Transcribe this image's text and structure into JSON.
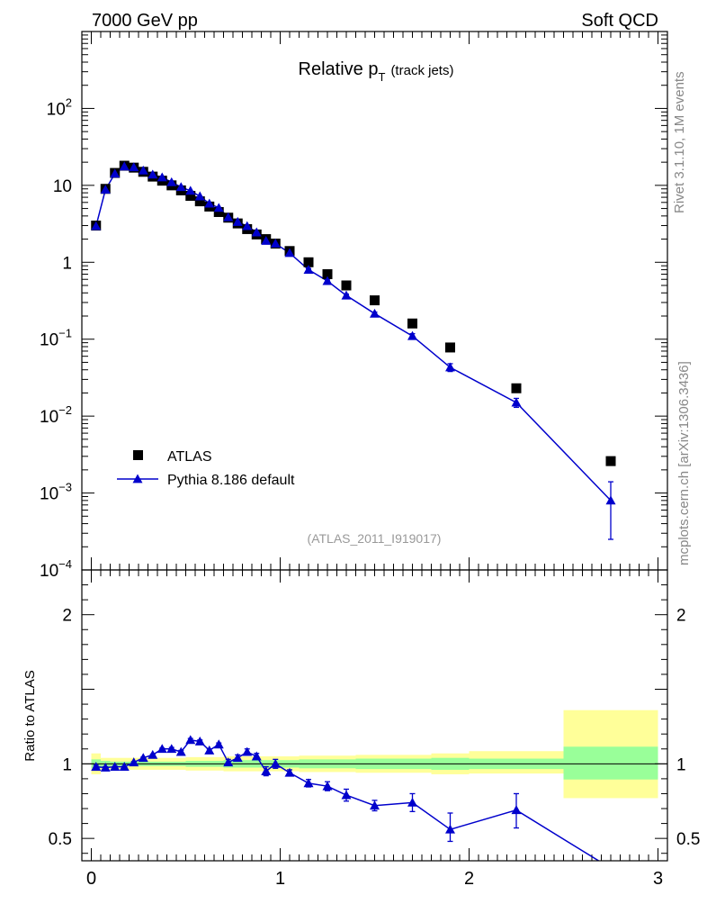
{
  "header": {
    "energy_label": "7000 GeV pp",
    "category_label": "Soft QCD"
  },
  "side": {
    "rivet_label": "Rivet 3.1.10,  1M events",
    "source_label": "mcplots.cern.ch [arXiv:1306.3436]"
  },
  "colors": {
    "atlas": "#000000",
    "pythia": "#0000cc",
    "band_inner": "#99ff99",
    "band_outer": "#ffff99"
  },
  "chart_data": [
    {
      "type": "scatter",
      "title_main": "Relative p",
      "title_sub": "T",
      "title_note": "(track jets)",
      "analysis_label": "(ATLAS_2011_I919017)",
      "yscale": "log",
      "xlim": [
        -0.05,
        3.05
      ],
      "ylim": [
        0.0001,
        1000
      ],
      "y_tick_labels": [
        {
          "value": 0.0001,
          "base": "10",
          "exp": "−4"
        },
        {
          "value": 0.001,
          "base": "10",
          "exp": "−3"
        },
        {
          "value": 0.01,
          "base": "10",
          "exp": "−2"
        },
        {
          "value": 0.1,
          "base": "10",
          "exp": "−1"
        },
        {
          "value": 1,
          "base": "1",
          "exp": ""
        },
        {
          "value": 10,
          "base": "10",
          "exp": ""
        },
        {
          "value": 100,
          "base": "10",
          "exp": "2"
        }
      ],
      "legend_position": "lower-left",
      "series": [
        {
          "name": "ATLAS",
          "marker": "square",
          "points": [
            {
              "x": 0.025,
              "y": 3.0
            },
            {
              "x": 0.075,
              "y": 9.0
            },
            {
              "x": 0.125,
              "y": 14.5
            },
            {
              "x": 0.175,
              "y": 18.0
            },
            {
              "x": 0.225,
              "y": 17.0
            },
            {
              "x": 0.275,
              "y": 15.0
            },
            {
              "x": 0.325,
              "y": 13.0
            },
            {
              "x": 0.375,
              "y": 11.5
            },
            {
              "x": 0.425,
              "y": 10.0
            },
            {
              "x": 0.475,
              "y": 8.6
            },
            {
              "x": 0.525,
              "y": 7.3
            },
            {
              "x": 0.575,
              "y": 6.2
            },
            {
              "x": 0.625,
              "y": 5.3
            },
            {
              "x": 0.675,
              "y": 4.5
            },
            {
              "x": 0.725,
              "y": 3.8
            },
            {
              "x": 0.775,
              "y": 3.2
            },
            {
              "x": 0.825,
              "y": 2.7
            },
            {
              "x": 0.875,
              "y": 2.3
            },
            {
              "x": 0.925,
              "y": 2.0
            },
            {
              "x": 0.975,
              "y": 1.75
            },
            {
              "x": 1.05,
              "y": 1.4
            },
            {
              "x": 1.15,
              "y": 1.0
            },
            {
              "x": 1.25,
              "y": 0.7
            },
            {
              "x": 1.35,
              "y": 0.5
            },
            {
              "x": 1.5,
              "y": 0.32
            },
            {
              "x": 1.7,
              "y": 0.16
            },
            {
              "x": 1.9,
              "y": 0.078
            },
            {
              "x": 2.25,
              "y": 0.023
            },
            {
              "x": 2.75,
              "y": 0.0026
            }
          ]
        },
        {
          "name": "Pythia 8.186 default",
          "marker": "triangle",
          "points": [
            {
              "x": 0.025,
              "y": 2.95,
              "lo": 2.95,
              "hi": 2.95
            },
            {
              "x": 0.075,
              "y": 8.8,
              "lo": 8.8,
              "hi": 8.8
            },
            {
              "x": 0.125,
              "y": 14.2,
              "lo": 14.2,
              "hi": 14.2
            },
            {
              "x": 0.175,
              "y": 17.6,
              "lo": 17.6,
              "hi": 17.6
            },
            {
              "x": 0.225,
              "y": 17.2,
              "lo": 17.2,
              "hi": 17.2
            },
            {
              "x": 0.275,
              "y": 15.6,
              "lo": 15.6,
              "hi": 15.6
            },
            {
              "x": 0.325,
              "y": 13.8,
              "lo": 13.8,
              "hi": 13.8
            },
            {
              "x": 0.375,
              "y": 12.7,
              "lo": 12.7,
              "hi": 12.7
            },
            {
              "x": 0.425,
              "y": 11.0,
              "lo": 11.0,
              "hi": 11.0
            },
            {
              "x": 0.475,
              "y": 9.5,
              "lo": 9.5,
              "hi": 9.5
            },
            {
              "x": 0.525,
              "y": 8.5,
              "lo": 8.5,
              "hi": 8.5
            },
            {
              "x": 0.575,
              "y": 7.2,
              "lo": 7.2,
              "hi": 7.2
            },
            {
              "x": 0.625,
              "y": 5.8,
              "lo": 5.8,
              "hi": 5.8
            },
            {
              "x": 0.675,
              "y": 5.1,
              "lo": 5.1,
              "hi": 5.1
            },
            {
              "x": 0.725,
              "y": 3.85,
              "lo": 3.8,
              "hi": 3.9
            },
            {
              "x": 0.775,
              "y": 3.35,
              "lo": 3.3,
              "hi": 3.4
            },
            {
              "x": 0.825,
              "y": 2.95,
              "lo": 2.9,
              "hi": 3.0
            },
            {
              "x": 0.875,
              "y": 2.45,
              "lo": 2.4,
              "hi": 2.5
            },
            {
              "x": 0.925,
              "y": 1.9,
              "lo": 1.85,
              "hi": 1.95
            },
            {
              "x": 0.975,
              "y": 1.75,
              "lo": 1.7,
              "hi": 1.8
            },
            {
              "x": 1.05,
              "y": 1.32,
              "lo": 1.28,
              "hi": 1.36
            },
            {
              "x": 1.15,
              "y": 0.8,
              "lo": 0.77,
              "hi": 0.83
            },
            {
              "x": 1.25,
              "y": 0.57,
              "lo": 0.55,
              "hi": 0.59
            },
            {
              "x": 1.35,
              "y": 0.37,
              "lo": 0.355,
              "hi": 0.385
            },
            {
              "x": 1.5,
              "y": 0.215,
              "lo": 0.205,
              "hi": 0.225
            },
            {
              "x": 1.7,
              "y": 0.11,
              "lo": 0.102,
              "hi": 0.118
            },
            {
              "x": 1.9,
              "y": 0.043,
              "lo": 0.038,
              "hi": 0.048
            },
            {
              "x": 2.25,
              "y": 0.015,
              "lo": 0.013,
              "hi": 0.017
            },
            {
              "x": 2.75,
              "y": 0.0008,
              "lo": 0.00025,
              "hi": 0.0014
            }
          ]
        }
      ]
    },
    {
      "type": "scatter",
      "ylabel": "Ratio to ATLAS",
      "xlim": [
        -0.05,
        3.05
      ],
      "ylim": [
        0.35,
        2.3
      ],
      "x_tick_labels": [
        {
          "value": 0,
          "label": "0"
        },
        {
          "value": 1,
          "label": "1"
        },
        {
          "value": 2,
          "label": "2"
        },
        {
          "value": 3,
          "label": "3"
        }
      ],
      "y_tick_labels": [
        {
          "value": 0.5,
          "label": "0.5"
        },
        {
          "value": 1,
          "label": "1"
        },
        {
          "value": 2,
          "label": "2"
        }
      ],
      "reference_line": 1,
      "bands": [
        {
          "x0": 0.0,
          "x1": 0.05,
          "inner": [
            0.97,
            1.03
          ],
          "outer": [
            0.93,
            1.07
          ]
        },
        {
          "x0": 0.05,
          "x1": 0.1,
          "inner": [
            0.98,
            1.02
          ],
          "outer": [
            0.96,
            1.04
          ]
        },
        {
          "x0": 0.1,
          "x1": 0.5,
          "inner": [
            0.985,
            1.015
          ],
          "outer": [
            0.96,
            1.04
          ]
        },
        {
          "x0": 0.5,
          "x1": 0.7,
          "inner": [
            0.98,
            1.02
          ],
          "outer": [
            0.955,
            1.045
          ]
        },
        {
          "x0": 0.7,
          "x1": 1.1,
          "inner": [
            0.975,
            1.025
          ],
          "outer": [
            0.95,
            1.05
          ]
        },
        {
          "x0": 1.1,
          "x1": 1.4,
          "inner": [
            0.97,
            1.03
          ],
          "outer": [
            0.945,
            1.055
          ]
        },
        {
          "x0": 1.4,
          "x1": 1.6,
          "inner": [
            0.965,
            1.035
          ],
          "outer": [
            0.94,
            1.06
          ]
        },
        {
          "x0": 1.6,
          "x1": 1.8,
          "inner": [
            0.965,
            1.035
          ],
          "outer": [
            0.94,
            1.06
          ]
        },
        {
          "x0": 1.8,
          "x1": 2.0,
          "inner": [
            0.96,
            1.04
          ],
          "outer": [
            0.93,
            1.07
          ]
        },
        {
          "x0": 2.0,
          "x1": 2.5,
          "inner": [
            0.965,
            1.035
          ],
          "outer": [
            0.935,
            1.085
          ]
        },
        {
          "x0": 2.5,
          "x1": 3.0,
          "inner": [
            0.895,
            1.115
          ],
          "outer": [
            0.77,
            1.36
          ]
        }
      ],
      "series": [
        {
          "name": "Pythia 8.186 default",
          "marker": "triangle",
          "points": [
            {
              "x": 0.025,
              "y": 0.98,
              "lo": 0.97,
              "hi": 0.99
            },
            {
              "x": 0.075,
              "y": 0.975,
              "lo": 0.97,
              "hi": 0.98
            },
            {
              "x": 0.125,
              "y": 0.98,
              "lo": 0.975,
              "hi": 0.985
            },
            {
              "x": 0.175,
              "y": 0.98,
              "lo": 0.975,
              "hi": 0.985
            },
            {
              "x": 0.225,
              "y": 1.01,
              "lo": 1.005,
              "hi": 1.015
            },
            {
              "x": 0.275,
              "y": 1.04,
              "lo": 1.035,
              "hi": 1.045
            },
            {
              "x": 0.325,
              "y": 1.06,
              "lo": 1.055,
              "hi": 1.065
            },
            {
              "x": 0.375,
              "y": 1.1,
              "lo": 1.095,
              "hi": 1.105
            },
            {
              "x": 0.425,
              "y": 1.1,
              "lo": 1.09,
              "hi": 1.11
            },
            {
              "x": 0.475,
              "y": 1.08,
              "lo": 1.07,
              "hi": 1.09
            },
            {
              "x": 0.525,
              "y": 1.16,
              "lo": 1.15,
              "hi": 1.17
            },
            {
              "x": 0.575,
              "y": 1.15,
              "lo": 1.14,
              "hi": 1.16
            },
            {
              "x": 0.625,
              "y": 1.09,
              "lo": 1.08,
              "hi": 1.1
            },
            {
              "x": 0.675,
              "y": 1.13,
              "lo": 1.12,
              "hi": 1.14
            },
            {
              "x": 0.725,
              "y": 1.01,
              "lo": 0.99,
              "hi": 1.03
            },
            {
              "x": 0.775,
              "y": 1.04,
              "lo": 1.02,
              "hi": 1.06
            },
            {
              "x": 0.825,
              "y": 1.08,
              "lo": 1.06,
              "hi": 1.1
            },
            {
              "x": 0.875,
              "y": 1.05,
              "lo": 1.03,
              "hi": 1.07
            },
            {
              "x": 0.925,
              "y": 0.95,
              "lo": 0.92,
              "hi": 0.98
            },
            {
              "x": 0.975,
              "y": 1.0,
              "lo": 0.97,
              "hi": 1.03
            },
            {
              "x": 1.05,
              "y": 0.94,
              "lo": 0.92,
              "hi": 0.96
            },
            {
              "x": 1.15,
              "y": 0.87,
              "lo": 0.845,
              "hi": 0.895
            },
            {
              "x": 1.25,
              "y": 0.85,
              "lo": 0.82,
              "hi": 0.88
            },
            {
              "x": 1.35,
              "y": 0.79,
              "lo": 0.75,
              "hi": 0.83
            },
            {
              "x": 1.5,
              "y": 0.72,
              "lo": 0.685,
              "hi": 0.755
            },
            {
              "x": 1.7,
              "y": 0.74,
              "lo": 0.68,
              "hi": 0.8
            },
            {
              "x": 1.9,
              "y": 0.56,
              "lo": 0.48,
              "hi": 0.67
            },
            {
              "x": 2.25,
              "y": 0.69,
              "lo": 0.57,
              "hi": 0.8
            },
            {
              "x": 2.75,
              "y": 0.3
            }
          ]
        }
      ]
    }
  ]
}
